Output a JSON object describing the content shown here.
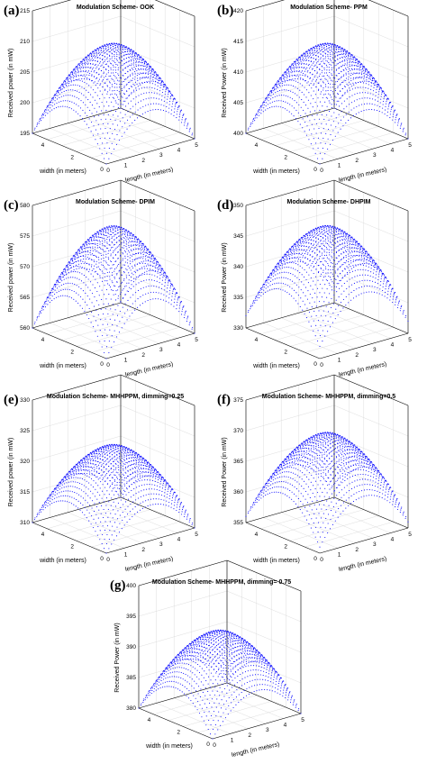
{
  "chart_data": [
    {
      "type": "surface",
      "label": "(a)",
      "title": "Modulation Scheme- OOK",
      "xlabel": "length (in meters)",
      "ylabel": "width (in meters)",
      "zlabel": "Received power (in mW)",
      "xticks": [
        "0",
        "1",
        "2",
        "3",
        "4",
        "5"
      ],
      "yticks": [
        "0",
        "2",
        "4"
      ],
      "zticks": [
        "195",
        "200",
        "205",
        "210",
        "215"
      ],
      "zlim": [
        195,
        215
      ],
      "xlim": [
        0,
        5
      ],
      "ylim": [
        0,
        5
      ],
      "z_min": 195,
      "z_peak": 210,
      "color": "#0000ff"
    },
    {
      "type": "surface",
      "label": "(b)",
      "title": "Modulation Scheme- PPM",
      "xlabel": "length (in meters)",
      "ylabel": "width (in meters)",
      "zlabel": "Received Power (in mW)",
      "xticks": [
        "0",
        "1",
        "2",
        "3",
        "4",
        "5"
      ],
      "yticks": [
        "0",
        "2",
        "4"
      ],
      "zticks": [
        "400",
        "405",
        "410",
        "415",
        "420"
      ],
      "zlim": [
        400,
        420
      ],
      "xlim": [
        0,
        5
      ],
      "ylim": [
        0,
        5
      ],
      "z_min": 400,
      "z_peak": 415,
      "color": "#0000ff"
    },
    {
      "type": "surface",
      "label": "(c)",
      "title": "Modulation Scheme- DPIM",
      "xlabel": "length (in meters)",
      "ylabel": "width (in meters)",
      "zlabel": "Received power (in mW)",
      "xticks": [
        "0",
        "1",
        "2",
        "3",
        "4",
        "5"
      ],
      "yticks": [
        "0",
        "2",
        "4"
      ],
      "zticks": [
        "560",
        "565",
        "570",
        "575",
        "580"
      ],
      "zlim": [
        560,
        580
      ],
      "xlim": [
        0,
        5
      ],
      "ylim": [
        0,
        5
      ],
      "z_min": 560,
      "z_peak": 577,
      "color": "#0000ff"
    },
    {
      "type": "surface",
      "label": "(d)",
      "title": "Modulation Scheme- DHPIM",
      "xlabel": "length (in meters)",
      "ylabel": "width (in meters)",
      "zlabel": "Received Power (in mW)",
      "xticks": [
        "0",
        "1",
        "2",
        "3",
        "4",
        "5"
      ],
      "yticks": [
        "0",
        "2",
        "4"
      ],
      "zticks": [
        "330",
        "335",
        "340",
        "345",
        "350"
      ],
      "zlim": [
        330,
        350
      ],
      "xlim": [
        0,
        5
      ],
      "ylim": [
        0,
        5
      ],
      "z_min": 332,
      "z_peak": 347,
      "color": "#0000ff"
    },
    {
      "type": "surface",
      "label": "(e)",
      "title": "Modulation Scheme- MHHPPM, dimming=0.25",
      "xlabel": "length (in meters)",
      "ylabel": "width (in meters)",
      "zlabel": "Received power (in mW)",
      "xticks": [
        "0",
        "1",
        "2",
        "3",
        "4",
        "5"
      ],
      "yticks": [
        "0",
        "2",
        "4"
      ],
      "zticks": [
        "310",
        "315",
        "320",
        "325",
        "330"
      ],
      "zlim": [
        310,
        330
      ],
      "xlim": [
        0,
        5
      ],
      "ylim": [
        0,
        5
      ],
      "z_min": 310,
      "z_peak": 323,
      "color": "#0000ff"
    },
    {
      "type": "surface",
      "label": "(f)",
      "title": "Modulation Scheme- MHHPPM, dimming=0.5",
      "xlabel": "length (in meters)",
      "ylabel": "width (in meters)",
      "zlabel": "Received Power (in mW)",
      "xticks": [
        "0",
        "1",
        "2",
        "3",
        "4",
        "5"
      ],
      "yticks": [
        "0",
        "2",
        "4"
      ],
      "zticks": [
        "355",
        "360",
        "365",
        "370",
        "375"
      ],
      "zlim": [
        355,
        375
      ],
      "xlim": [
        0,
        5
      ],
      "ylim": [
        0,
        5
      ],
      "z_min": 356,
      "z_peak": 370,
      "color": "#0000ff"
    },
    {
      "type": "surface",
      "label": "(g)",
      "title": "Modulation Scheme- MHHPPM, dimming= 0.75",
      "xlabel": "length (in meters)",
      "ylabel": "width (in meters)",
      "zlabel": "Received Power (in mW)",
      "xticks": [
        "0",
        "1",
        "2",
        "3",
        "4",
        "5"
      ],
      "yticks": [
        "0",
        "2",
        "4"
      ],
      "zticks": [
        "380",
        "385",
        "390",
        "395",
        "400"
      ],
      "zlim": [
        380,
        400
      ],
      "xlim": [
        0,
        5
      ],
      "ylim": [
        0,
        5
      ],
      "z_min": 380,
      "z_peak": 393,
      "color": "#0000ff"
    }
  ]
}
